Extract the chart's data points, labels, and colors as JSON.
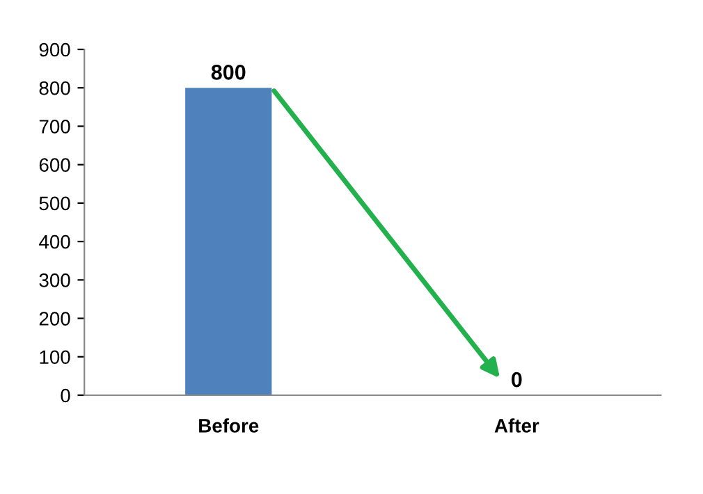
{
  "chart_data": {
    "type": "bar",
    "categories": [
      "Before",
      "After"
    ],
    "values": [
      800,
      0
    ],
    "color": "#4f81bd",
    "ylim": [
      0,
      900
    ],
    "yticks": [
      0,
      100,
      200,
      300,
      400,
      500,
      600,
      700,
      800,
      900
    ],
    "data_labels": true,
    "grid": false
  }
}
